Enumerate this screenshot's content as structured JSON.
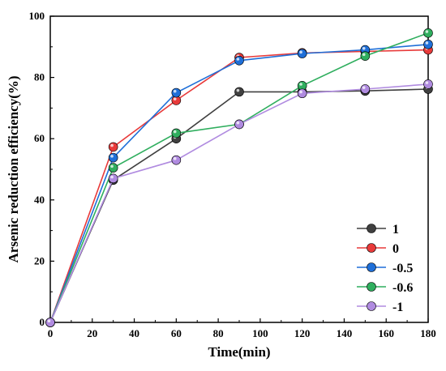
{
  "chart_data": {
    "type": "line",
    "xlabel": "Time(min)",
    "ylabel": "Arsenic reduction efficiency(%)",
    "xlim": [
      0,
      180
    ],
    "ylim": [
      0,
      100
    ],
    "xticks": [
      "0",
      "20",
      "40",
      "60",
      "80",
      "100",
      "120",
      "140",
      "160",
      "180"
    ],
    "yticks": [
      "0",
      "20",
      "40",
      "60",
      "80",
      "100"
    ],
    "x": [
      0,
      30,
      60,
      90,
      120,
      150,
      180
    ],
    "grid": false,
    "legend_position": "bottom-right",
    "series": [
      {
        "name": "1",
        "color": "#404040",
        "values": [
          0,
          46.5,
          60.0,
          75.3,
          75.3,
          75.6,
          76.2
        ]
      },
      {
        "name": "0",
        "color": "#e83a3a",
        "values": [
          0,
          57.3,
          72.5,
          86.5,
          88.0,
          88.5,
          89.0
        ]
      },
      {
        "name": "-0.5",
        "color": "#1f6fd8",
        "values": [
          0,
          53.8,
          75.0,
          85.5,
          87.8,
          89.0,
          90.8
        ]
      },
      {
        "name": "-0.6",
        "color": "#2fae5e",
        "values": [
          0,
          50.5,
          61.8,
          64.7,
          77.3,
          87.0,
          94.5
        ]
      },
      {
        "name": "-1",
        "color": "#b08be0",
        "values": [
          0,
          47.0,
          53.0,
          64.7,
          74.8,
          76.2,
          77.8
        ]
      }
    ]
  }
}
